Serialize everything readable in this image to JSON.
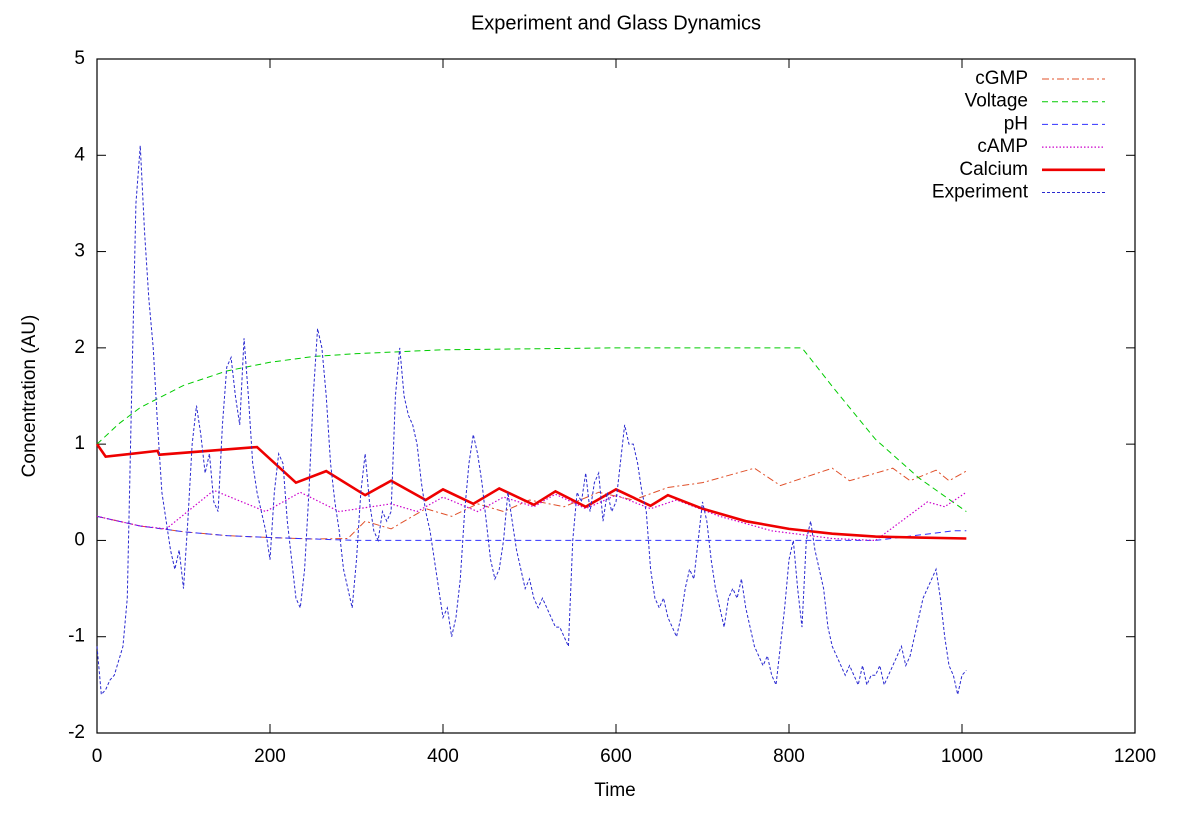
{
  "chart_data": {
    "type": "line",
    "title": "Experiment and Glass Dynamics",
    "x_label": "Time",
    "y_label": "Concentration (AU)",
    "xlim": [
      0,
      1200
    ],
    "xticks": [
      0,
      200,
      400,
      600,
      800,
      1000,
      1200
    ],
    "ylim": [
      -2,
      5
    ],
    "yticks": [
      -2,
      -1,
      0,
      1,
      2,
      3,
      4,
      5
    ],
    "grid": false,
    "legend": "top-right",
    "series": [
      {
        "name": "cGMP",
        "color": "#e0502a",
        "style": "dash-dot",
        "x": [
          0,
          50,
          100,
          150,
          200,
          250,
          290,
          310,
          340,
          380,
          410,
          440,
          470,
          500,
          540,
          580,
          620,
          660,
          700,
          760,
          790,
          850,
          870,
          920,
          940,
          970,
          985,
          1005
        ],
        "values": [
          0.25,
          0.15,
          0.09,
          0.05,
          0.03,
          0.015,
          0.02,
          0.2,
          0.12,
          0.33,
          0.25,
          0.38,
          0.3,
          0.42,
          0.35,
          0.5,
          0.42,
          0.55,
          0.6,
          0.75,
          0.57,
          0.75,
          0.62,
          0.75,
          0.62,
          0.73,
          0.62,
          0.72
        ]
      },
      {
        "name": "Voltage",
        "color": "#00cc00",
        "style": "dashed",
        "x": [
          0,
          25,
          50,
          100,
          150,
          200,
          250,
          300,
          350,
          400,
          500,
          600,
          700,
          815,
          850,
          900,
          950,
          1005
        ],
        "values": [
          1.0,
          1.21,
          1.38,
          1.61,
          1.76,
          1.85,
          1.91,
          1.94,
          1.96,
          1.98,
          1.99,
          2.0,
          2.0,
          2.0,
          1.6,
          1.05,
          0.65,
          0.3
        ]
      },
      {
        "name": "pH",
        "color": "#3030ff",
        "style": "dashed",
        "x": [
          0,
          50,
          100,
          150,
          200,
          250,
          300,
          600,
          900,
          990,
          1005
        ],
        "values": [
          0.25,
          0.15,
          0.09,
          0.05,
          0.03,
          0.015,
          0,
          0,
          0,
          0.1,
          0.1
        ]
      },
      {
        "name": "cAMP",
        "color": "#cc00cc",
        "style": "dotted",
        "x": [
          0,
          50,
          80,
          135,
          195,
          235,
          280,
          340,
          370,
          400,
          440,
          470,
          505,
          530,
          565,
          600,
          640,
          670,
          720,
          780,
          850,
          900,
          930,
          960,
          980,
          1005
        ],
        "values": [
          0.25,
          0.15,
          0.12,
          0.52,
          0.3,
          0.5,
          0.3,
          0.38,
          0.3,
          0.45,
          0.3,
          0.45,
          0.35,
          0.48,
          0.33,
          0.47,
          0.33,
          0.42,
          0.25,
          0.1,
          0.02,
          0,
          0.2,
          0.4,
          0.35,
          0.5
        ]
      },
      {
        "name": "Calcium",
        "color": "#ee0000",
        "style": "thick",
        "x": [
          0,
          10,
          70,
          72,
          185,
          230,
          265,
          310,
          340,
          380,
          400,
          435,
          465,
          505,
          530,
          565,
          600,
          640,
          660,
          700,
          750,
          800,
          850,
          900,
          950,
          1005
        ],
        "values": [
          1.0,
          0.87,
          0.93,
          0.89,
          0.97,
          0.6,
          0.72,
          0.47,
          0.62,
          0.42,
          0.53,
          0.38,
          0.54,
          0.37,
          0.51,
          0.35,
          0.53,
          0.36,
          0.47,
          0.33,
          0.2,
          0.12,
          0.07,
          0.04,
          0.03,
          0.02
        ]
      },
      {
        "name": "Experiment",
        "color": "#2a2ad0",
        "style": "fine-dashed",
        "x": [
          0,
          5,
          10,
          15,
          20,
          25,
          30,
          35,
          40,
          45,
          50,
          55,
          60,
          65,
          70,
          75,
          80,
          85,
          90,
          95,
          100,
          105,
          110,
          115,
          120,
          125,
          130,
          135,
          140,
          145,
          150,
          155,
          160,
          165,
          170,
          175,
          180,
          185,
          190,
          195,
          200,
          205,
          210,
          215,
          220,
          225,
          230,
          235,
          240,
          245,
          250,
          255,
          260,
          265,
          270,
          275,
          280,
          285,
          290,
          295,
          300,
          305,
          310,
          315,
          320,
          325,
          330,
          335,
          340,
          345,
          350,
          355,
          360,
          365,
          370,
          375,
          380,
          385,
          390,
          395,
          400,
          405,
          410,
          415,
          420,
          425,
          430,
          435,
          440,
          445,
          450,
          455,
          460,
          465,
          470,
          475,
          480,
          485,
          490,
          495,
          500,
          505,
          510,
          515,
          520,
          525,
          530,
          535,
          540,
          545,
          550,
          555,
          560,
          565,
          570,
          575,
          580,
          585,
          590,
          595,
          600,
          605,
          610,
          615,
          620,
          625,
          630,
          635,
          640,
          645,
          650,
          655,
          660,
          665,
          670,
          675,
          680,
          685,
          690,
          695,
          700,
          705,
          710,
          715,
          720,
          725,
          730,
          735,
          740,
          745,
          750,
          755,
          760,
          765,
          770,
          775,
          780,
          785,
          790,
          795,
          800,
          805,
          810,
          815,
          820,
          825,
          830,
          835,
          840,
          845,
          850,
          855,
          860,
          865,
          870,
          875,
          880,
          885,
          890,
          895,
          900,
          905,
          910,
          915,
          920,
          925,
          930,
          935,
          940,
          945,
          950,
          955,
          960,
          965,
          970,
          975,
          980,
          985,
          990,
          995,
          1000,
          1005
        ],
        "values": [
          -1.1,
          -1.6,
          -1.55,
          -1.45,
          -1.4,
          -1.25,
          -1.1,
          -0.6,
          1.5,
          3.5,
          4.1,
          3.2,
          2.5,
          2.0,
          1.2,
          0.5,
          0.2,
          -0.1,
          -0.3,
          -0.1,
          -0.5,
          0.2,
          1.0,
          1.4,
          1.1,
          0.7,
          0.9,
          0.4,
          0.3,
          1.2,
          1.8,
          1.9,
          1.5,
          1.2,
          2.1,
          1.5,
          0.8,
          0.5,
          0.3,
          0.1,
          -0.2,
          0.5,
          0.9,
          0.8,
          0.2,
          -0.2,
          -0.6,
          -0.7,
          -0.3,
          0.5,
          1.5,
          2.2,
          2.0,
          1.5,
          0.8,
          0.4,
          0.1,
          -0.3,
          -0.5,
          -0.7,
          -0.2,
          0.5,
          0.9,
          0.4,
          0.1,
          0.0,
          0.3,
          0.2,
          0.3,
          1.5,
          2.0,
          1.5,
          1.3,
          1.2,
          1.0,
          0.6,
          0.3,
          0.1,
          -0.2,
          -0.5,
          -0.8,
          -0.7,
          -1.0,
          -0.8,
          -0.4,
          0.3,
          0.8,
          1.1,
          0.9,
          0.6,
          0.2,
          -0.2,
          -0.4,
          -0.3,
          0.0,
          0.5,
          0.2,
          -0.1,
          -0.3,
          -0.5,
          -0.4,
          -0.6,
          -0.7,
          -0.6,
          -0.7,
          -0.8,
          -0.9,
          -0.9,
          -1.0,
          -1.1,
          0.0,
          0.5,
          0.4,
          0.7,
          0.3,
          0.6,
          0.7,
          0.2,
          0.5,
          0.3,
          0.4,
          0.8,
          1.2,
          1.0,
          1.0,
          0.8,
          0.5,
          0.3,
          -0.3,
          -0.6,
          -0.7,
          -0.6,
          -0.8,
          -0.9,
          -1.0,
          -0.8,
          -0.5,
          -0.3,
          -0.4,
          0.0,
          0.4,
          0.2,
          -0.2,
          -0.5,
          -0.7,
          -0.9,
          -0.6,
          -0.5,
          -0.6,
          -0.4,
          -0.7,
          -0.9,
          -1.1,
          -1.2,
          -1.3,
          -1.2,
          -1.4,
          -1.5,
          -1.1,
          -0.7,
          -0.2,
          0.0,
          -0.5,
          -0.9,
          0.0,
          0.2,
          -0.1,
          -0.3,
          -0.5,
          -0.9,
          -1.1,
          -1.2,
          -1.3,
          -1.4,
          -1.3,
          -1.4,
          -1.5,
          -1.3,
          -1.5,
          -1.4,
          -1.4,
          -1.3,
          -1.5,
          -1.4,
          -1.3,
          -1.2,
          -1.1,
          -1.3,
          -1.2,
          -1.0,
          -0.8,
          -0.6,
          -0.5,
          -0.4,
          -0.3,
          -0.6,
          -1.0,
          -1.3,
          -1.4,
          -1.6,
          -1.4,
          -1.35
        ]
      }
    ]
  }
}
